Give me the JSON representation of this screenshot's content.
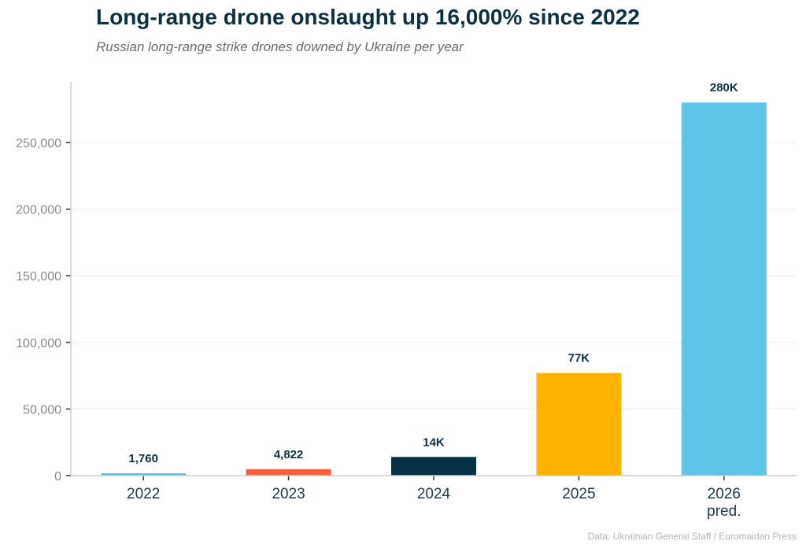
{
  "chart_data": {
    "type": "bar",
    "title": "Long-range drone onslaught up 16,000% since 2022",
    "subtitle": "Russian long-range strike drones downed by Ukraine per year",
    "source": "Data: Ukrainian General Staff / Euromaidan Press",
    "categories": [
      "2022",
      "2023",
      "2024",
      "2025",
      "2026 pred."
    ],
    "values": [
      1760,
      4822,
      14000,
      77000,
      280000
    ],
    "data_labels": [
      "1,760",
      "4,822",
      "14K",
      "77K",
      "280K"
    ],
    "colors": [
      "#5bc3e6",
      "#f2603e",
      "#053143",
      "#fdb300",
      "#5fc4e7"
    ],
    "xlabel": "",
    "ylabel": "",
    "ylim": [
      0,
      295000
    ],
    "yticks": [
      0,
      50000,
      100000,
      150000,
      200000,
      250000
    ],
    "ytick_labels": [
      "0",
      "50,000",
      "100,000",
      "150,000",
      "200,000",
      "250,000"
    ],
    "grid": "horizontal",
    "legend": "none"
  }
}
